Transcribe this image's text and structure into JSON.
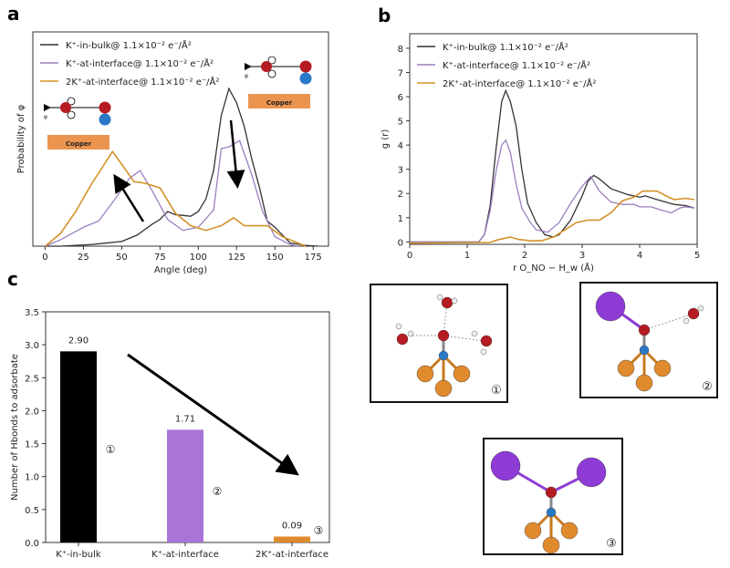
{
  "panels": {
    "a": "a",
    "b": "b",
    "c": "c"
  },
  "legend": [
    "K⁺-in-bulk@ 1.1×10⁻² e⁻/Å²",
    "K⁺-at-interface@ 1.1×10⁻² e⁻/Å²",
    "2K⁺-at-interface@ 1.1×10⁻² e⁻/Å²"
  ],
  "colors": {
    "bulk": "#333333",
    "interface": "#9b7fbf",
    "two_k": "#d4922a",
    "bar1": "#000000",
    "bar2": "#a974d8",
    "bar3": "#e08a2e",
    "copper": "#eb9450",
    "oxygen": "#b51c22",
    "nitrogen": "#2a78c8",
    "potassium": "#8e3bd6",
    "h": "#ffffff"
  },
  "insets_a": {
    "copper_label": "Copper",
    "phi": "φ"
  },
  "structure_labels": [
    "①",
    "②",
    "③"
  ],
  "chart_data": [
    {
      "type": "line",
      "title": "",
      "xlabel": "Angle (deg)",
      "ylabel": "Probability of φ",
      "xlim": [
        -8,
        185
      ],
      "ylim": [
        0,
        1.36
      ],
      "xticks": [
        0,
        25,
        50,
        75,
        100,
        125,
        150,
        175
      ],
      "yticks": [],
      "legend_position": "top-left",
      "series": [
        {
          "name": "K⁺-in-bulk",
          "color": "#333333",
          "points": [
            [
              0,
              0
            ],
            [
              10,
              0
            ],
            [
              20,
              0.005
            ],
            [
              30,
              0.01
            ],
            [
              40,
              0.02
            ],
            [
              50,
              0.03
            ],
            [
              60,
              0.07
            ],
            [
              70,
              0.14
            ],
            [
              75,
              0.17
            ],
            [
              80,
              0.22
            ],
            [
              85,
              0.2
            ],
            [
              95,
              0.19
            ],
            [
              100,
              0.22
            ],
            [
              105,
              0.3
            ],
            [
              110,
              0.48
            ],
            [
              115,
              0.83
            ],
            [
              120,
              1.0
            ],
            [
              125,
              0.91
            ],
            [
              130,
              0.76
            ],
            [
              135,
              0.55
            ],
            [
              140,
              0.37
            ],
            [
              145,
              0.16
            ],
            [
              150,
              0.12
            ],
            [
              155,
              0.07
            ],
            [
              160,
              0.02
            ],
            [
              170,
              0.005
            ],
            [
              178,
              0
            ]
          ]
        },
        {
          "name": "K⁺-at-interface",
          "color": "#9b7fbf",
          "points": [
            [
              0,
              0
            ],
            [
              10,
              0.04
            ],
            [
              25,
              0.12
            ],
            [
              35,
              0.16
            ],
            [
              45,
              0.29
            ],
            [
              55,
              0.43
            ],
            [
              62,
              0.48
            ],
            [
              70,
              0.35
            ],
            [
              80,
              0.17
            ],
            [
              90,
              0.1
            ],
            [
              100,
              0.12
            ],
            [
              110,
              0.23
            ],
            [
              115,
              0.62
            ],
            [
              120,
              0.63
            ],
            [
              127,
              0.67
            ],
            [
              135,
              0.45
            ],
            [
              142,
              0.22
            ],
            [
              150,
              0.06
            ],
            [
              160,
              0.01
            ],
            [
              165,
              0
            ]
          ]
        },
        {
          "name": "2K⁺-at-interface",
          "color": "#d4922a",
          "points": [
            [
              0,
              0
            ],
            [
              10,
              0.08
            ],
            [
              20,
              0.22
            ],
            [
              30,
              0.39
            ],
            [
              40,
              0.54
            ],
            [
              44,
              0.6
            ],
            [
              50,
              0.52
            ],
            [
              58,
              0.41
            ],
            [
              65,
              0.4
            ],
            [
              75,
              0.37
            ],
            [
              85,
              0.21
            ],
            [
              95,
              0.13
            ],
            [
              105,
              0.1
            ],
            [
              115,
              0.13
            ],
            [
              123,
              0.18
            ],
            [
              130,
              0.13
            ],
            [
              145,
              0.13
            ],
            [
              155,
              0.06
            ],
            [
              165,
              0.02
            ],
            [
              170,
              0
            ]
          ]
        }
      ]
    },
    {
      "type": "line",
      "title": "",
      "xlabel": "r O_NO − H_w (Å)",
      "ylabel": "g (r)",
      "xlim": [
        0,
        5
      ],
      "ylim": [
        -0.1,
        8.6
      ],
      "xticks": [
        0,
        1,
        2,
        3,
        4,
        5
      ],
      "yticks": [
        0,
        1,
        2,
        3,
        4,
        5,
        6,
        7,
        8
      ],
      "legend_position": "top-left",
      "series": [
        {
          "name": "K⁺-in-bulk",
          "color": "#333333",
          "points": [
            [
              0,
              0
            ],
            [
              1.2,
              0
            ],
            [
              1.3,
              0.3
            ],
            [
              1.4,
              1.5
            ],
            [
              1.5,
              3.8
            ],
            [
              1.6,
              5.8
            ],
            [
              1.67,
              6.25
            ],
            [
              1.75,
              5.8
            ],
            [
              1.85,
              4.8
            ],
            [
              1.95,
              3
            ],
            [
              2.05,
              1.6
            ],
            [
              2.2,
              0.8
            ],
            [
              2.35,
              0.3
            ],
            [
              2.5,
              0.2
            ],
            [
              2.6,
              0.3
            ],
            [
              2.8,
              0.9
            ],
            [
              3.0,
              1.9
            ],
            [
              3.1,
              2.5
            ],
            [
              3.2,
              2.75
            ],
            [
              3.3,
              2.6
            ],
            [
              3.5,
              2.2
            ],
            [
              3.8,
              1.95
            ],
            [
              4.0,
              1.85
            ],
            [
              4.1,
              1.9
            ],
            [
              4.3,
              1.75
            ],
            [
              4.6,
              1.55
            ],
            [
              4.8,
              1.5
            ],
            [
              4.95,
              1.4
            ]
          ]
        },
        {
          "name": "K⁺-at-interface",
          "color": "#9b7fbf",
          "points": [
            [
              0,
              0
            ],
            [
              1.2,
              0
            ],
            [
              1.3,
              0.3
            ],
            [
              1.4,
              1.3
            ],
            [
              1.5,
              2.9
            ],
            [
              1.6,
              4.0
            ],
            [
              1.67,
              4.2
            ],
            [
              1.75,
              3.7
            ],
            [
              1.85,
              2.4
            ],
            [
              1.95,
              1.4
            ],
            [
              2.1,
              0.8
            ],
            [
              2.2,
              0.5
            ],
            [
              2.4,
              0.4
            ],
            [
              2.6,
              0.8
            ],
            [
              2.8,
              1.6
            ],
            [
              3.0,
              2.3
            ],
            [
              3.15,
              2.7
            ],
            [
              3.3,
              2.1
            ],
            [
              3.5,
              1.65
            ],
            [
              3.7,
              1.55
            ],
            [
              3.9,
              1.55
            ],
            [
              4.0,
              1.45
            ],
            [
              4.2,
              1.45
            ],
            [
              4.4,
              1.3
            ],
            [
              4.55,
              1.2
            ],
            [
              4.7,
              1.4
            ],
            [
              4.8,
              1.45
            ],
            [
              4.95,
              1.4
            ]
          ]
        },
        {
          "name": "2K⁺-at-interface",
          "color": "#d4922a",
          "points": [
            [
              0,
              -0.05
            ],
            [
              1.4,
              -0.02
            ],
            [
              1.55,
              0.1
            ],
            [
              1.75,
              0.2
            ],
            [
              1.9,
              0.1
            ],
            [
              2.1,
              0.05
            ],
            [
              2.3,
              0.05
            ],
            [
              2.5,
              0.2
            ],
            [
              2.7,
              0.5
            ],
            [
              2.9,
              0.8
            ],
            [
              3.1,
              0.9
            ],
            [
              3.3,
              0.9
            ],
            [
              3.5,
              1.2
            ],
            [
              3.7,
              1.7
            ],
            [
              3.9,
              1.85
            ],
            [
              4.05,
              2.1
            ],
            [
              4.3,
              2.1
            ],
            [
              4.5,
              1.85
            ],
            [
              4.6,
              1.75
            ],
            [
              4.8,
              1.8
            ],
            [
              4.95,
              1.75
            ]
          ]
        }
      ]
    },
    {
      "type": "bar",
      "title": "",
      "xlabel": "",
      "ylabel": "Number of Hbonds to adsorbate",
      "ylim": [
        0,
        3.5
      ],
      "yticks": [
        "0.0",
        "0.5",
        "1.0",
        "1.5",
        "2.0",
        "2.5",
        "3.0",
        "3.5"
      ],
      "categories": [
        "K⁺-in-bulk",
        "K⁺-at-interface",
        "2K⁺-at-interface"
      ],
      "values": [
        2.9,
        1.71,
        0.09
      ],
      "data_labels": [
        "2.90",
        "1.71",
        "0.09"
      ],
      "annotations": [
        "①",
        "②",
        "③"
      ]
    }
  ]
}
